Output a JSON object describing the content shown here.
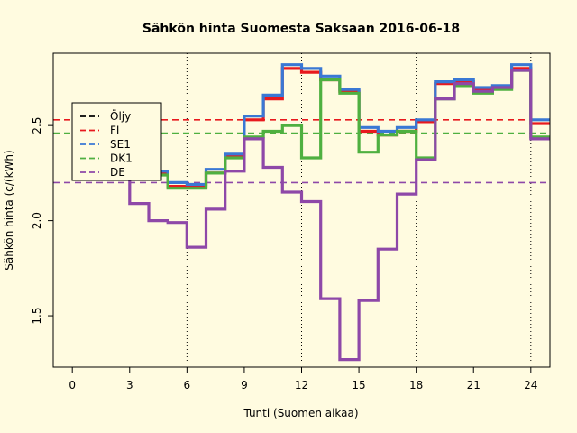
{
  "chart_data": {
    "type": "line",
    "title": "Sähkön hinta Suomesta Saksaan 2016-06-18",
    "xlabel": "Tunti (Suomen aikaa)",
    "ylabel": "Sähkön hinta (c/(kWh)",
    "xlim": [
      -1,
      25
    ],
    "ylim": [
      1.23,
      2.88
    ],
    "x_ticks": [
      0,
      3,
      6,
      9,
      12,
      15,
      18,
      21,
      24
    ],
    "y_ticks": [
      1.5,
      2.0,
      2.5
    ],
    "vlines": [
      6,
      12,
      18,
      24
    ],
    "legend_position": "top-left",
    "series": [
      {
        "name": "Öljy",
        "style": "step",
        "color": "#000000",
        "values": []
      },
      {
        "name": "FI",
        "style": "step",
        "color": "#e8191e",
        "values": [
          2.41,
          2.36,
          2.32,
          2.25,
          2.18,
          2.18,
          2.25,
          2.34,
          2.53,
          2.64,
          2.8,
          2.78,
          2.74,
          2.68,
          2.47,
          2.45,
          2.47,
          2.52,
          2.72,
          2.73,
          2.69,
          2.7,
          2.8,
          2.51
        ]
      },
      {
        "name": "SE1",
        "style": "step",
        "color": "#3a78d4",
        "values": [
          2.43,
          2.38,
          2.34,
          2.26,
          2.2,
          2.19,
          2.27,
          2.35,
          2.55,
          2.66,
          2.82,
          2.8,
          2.76,
          2.69,
          2.49,
          2.47,
          2.49,
          2.53,
          2.73,
          2.74,
          2.7,
          2.71,
          2.82,
          2.53
        ]
      },
      {
        "name": "DK1",
        "style": "step",
        "color": "#4fb040",
        "values": [
          2.4,
          2.35,
          2.31,
          2.24,
          2.17,
          2.17,
          2.25,
          2.33,
          2.44,
          2.47,
          2.5,
          2.33,
          2.74,
          2.67,
          2.36,
          2.45,
          2.47,
          2.33,
          2.64,
          2.71,
          2.67,
          2.69,
          2.79,
          2.44
        ]
      },
      {
        "name": "DE",
        "style": "step",
        "color": "#8e48a8",
        "values": [
          2.35,
          2.3,
          2.09,
          2.0,
          1.99,
          1.86,
          2.06,
          2.26,
          2.43,
          2.28,
          2.15,
          2.1,
          1.59,
          1.27,
          1.58,
          1.85,
          2.14,
          2.32,
          2.64,
          2.72,
          2.68,
          2.7,
          2.79,
          2.43
        ]
      },
      {
        "name": "FI_avg",
        "style": "hline",
        "color": "#e8191e",
        "value": 2.53
      },
      {
        "name": "DK1_avg",
        "style": "hline",
        "color": "#4fb040",
        "value": 2.46
      },
      {
        "name": "DE_avg",
        "style": "hline",
        "color": "#8e48a8",
        "value": 2.2
      }
    ],
    "legend": [
      "Öljy",
      "FI",
      "SE1",
      "DK1",
      "DE"
    ]
  }
}
